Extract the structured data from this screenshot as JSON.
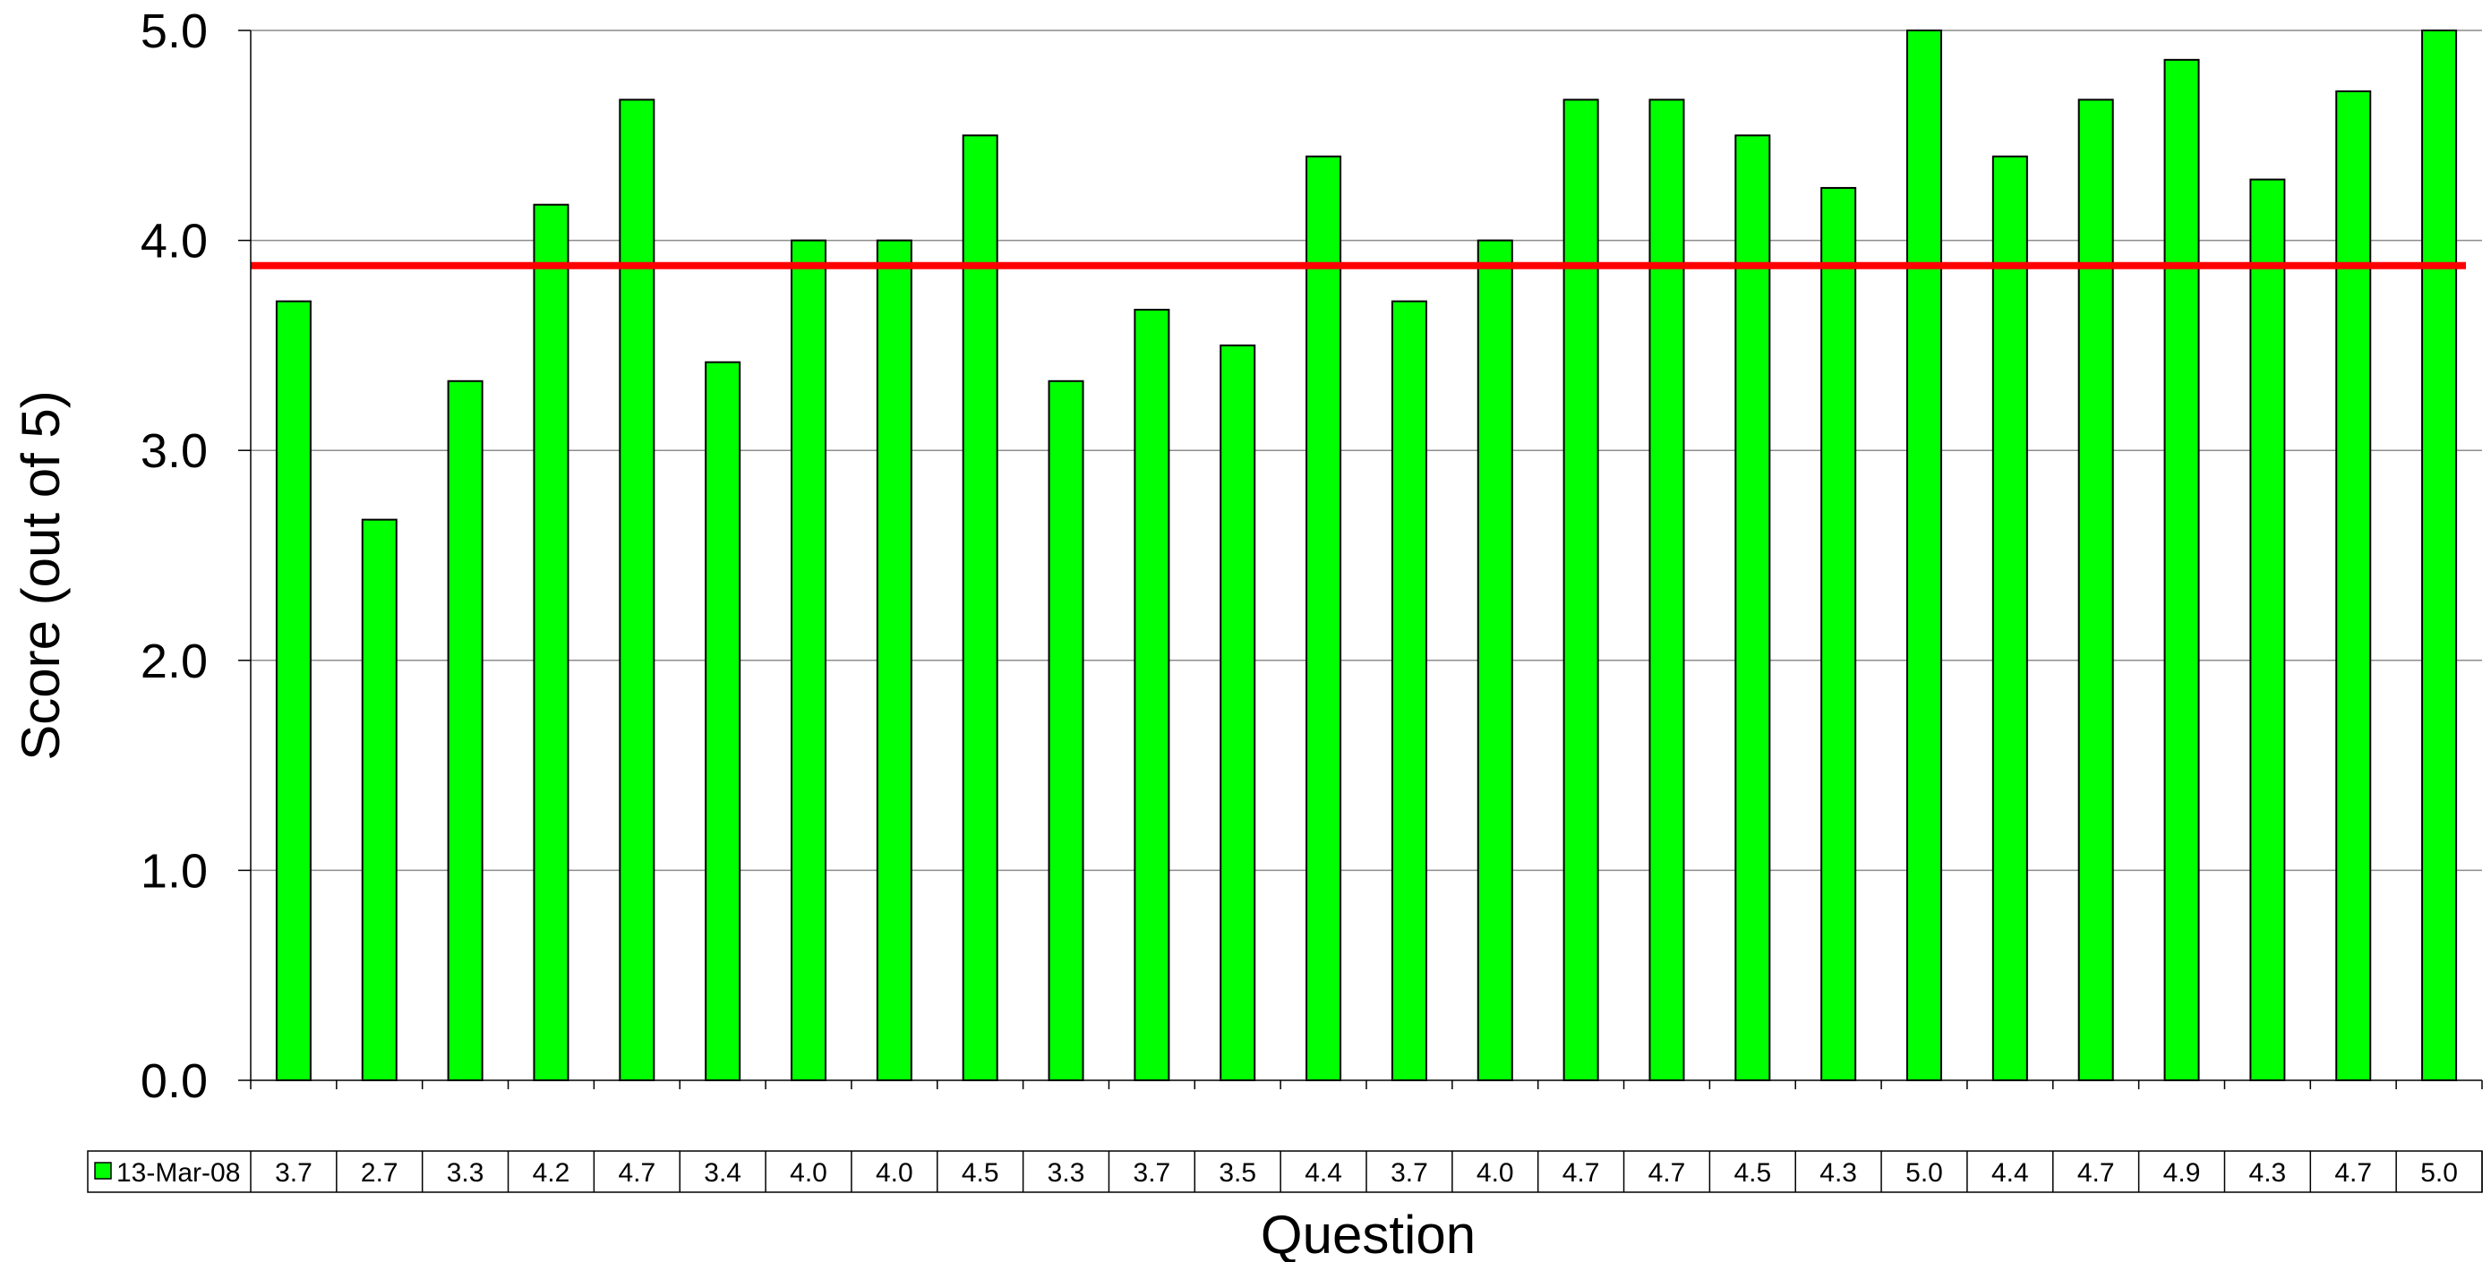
{
  "chart_data": {
    "type": "bar",
    "xlabel": "Question",
    "ylabel": "Score (out of 5)",
    "ylim": [
      0,
      5
    ],
    "yticks": [
      "0.0",
      "1.0",
      "2.0",
      "3.0",
      "4.0",
      "5.0"
    ],
    "grid": true,
    "series": [
      {
        "name": "13-Mar-08",
        "color": "#00ff00",
        "values": [
          3.71,
          2.67,
          3.33,
          4.17,
          4.67,
          3.42,
          4.0,
          4.0,
          4.5,
          3.33,
          3.67,
          3.5,
          4.4,
          3.71,
          4.0,
          4.67,
          4.67,
          4.5,
          4.25,
          5.0,
          4.4,
          4.67,
          4.86,
          4.29,
          4.71,
          5.0
        ],
        "labels": [
          "3.7",
          "2.7",
          "3.3",
          "4.2",
          "4.7",
          "3.4",
          "4.0",
          "4.0",
          "4.5",
          "3.3",
          "3.7",
          "3.5",
          "4.4",
          "3.7",
          "4.0",
          "4.7",
          "4.7",
          "4.5",
          "4.3",
          "5.0",
          "4.4",
          "4.7",
          "4.9",
          "4.3",
          "4.7",
          "5.0"
        ]
      }
    ],
    "reference_line": {
      "value": 3.88,
      "color": "#ff0000"
    },
    "legend_placement": "data-table-left"
  }
}
